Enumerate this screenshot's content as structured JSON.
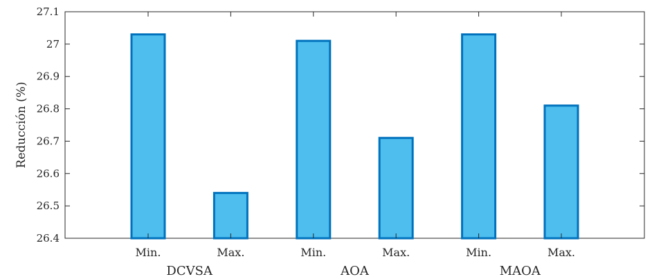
{
  "chart_data": {
    "type": "bar",
    "ylabel": "Reducción (%)",
    "xlabel": "",
    "title": "",
    "ylim": [
      26.4,
      27.1
    ],
    "yticks": [
      "26.4",
      "26.5",
      "26.6",
      "26.7",
      "26.8",
      "26.9",
      "27",
      "27.1"
    ],
    "categories": [
      "Min.",
      "Max.",
      "Min.",
      "Max.",
      "Min.",
      "Max."
    ],
    "groups": [
      "DCVSA",
      "AOA",
      "MAOA"
    ],
    "values": [
      27.03,
      26.54,
      27.01,
      26.71,
      27.03,
      26.81
    ],
    "bar_color": "#4DBEEE",
    "bar_edge_color": "#0072BD",
    "grid": false,
    "box": true
  }
}
